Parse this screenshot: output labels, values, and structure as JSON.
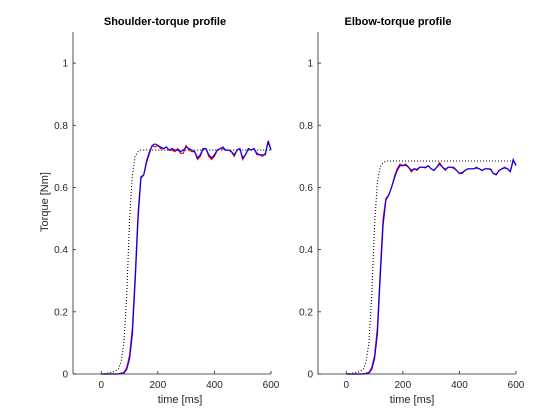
{
  "chart_data": [
    {
      "type": "line",
      "title": "Shoulder-torque profile",
      "xlabel": "time [ms]",
      "ylabel": "Torque [Nm]",
      "xlim": [
        -100,
        600
      ],
      "ylim": [
        0,
        1.1
      ],
      "xticks": [
        0,
        200,
        400,
        600
      ],
      "yticks": [
        0,
        0.2,
        0.4,
        0.6,
        0.8,
        1
      ],
      "grid": false,
      "series": [
        {
          "style": "dotted",
          "color": "#000000",
          "x": [
            0,
            40,
            60,
            70,
            80,
            90,
            100,
            110,
            120,
            130,
            140,
            150,
            200,
            300,
            400,
            500,
            600
          ],
          "y": [
            0,
            0.005,
            0.015,
            0.04,
            0.1,
            0.25,
            0.5,
            0.64,
            0.7,
            0.715,
            0.72,
            0.72,
            0.72,
            0.72,
            0.72,
            0.72,
            0.72
          ]
        },
        {
          "style": "solid",
          "color": "#ff0000",
          "x": [
            0,
            60,
            80,
            90,
            100,
            110,
            120,
            130,
            140,
            150,
            160,
            170,
            180,
            190,
            200,
            210,
            220,
            230,
            240,
            250,
            260,
            270,
            280,
            290,
            300,
            310,
            320,
            330,
            340,
            350,
            360,
            370,
            380,
            390,
            400,
            410,
            420,
            430,
            440,
            450,
            460,
            470,
            480,
            490,
            500,
            510,
            520,
            530,
            540,
            550,
            560,
            570,
            580,
            590,
            600
          ],
          "y": [
            0,
            0,
            0.005,
            0.02,
            0.06,
            0.15,
            0.32,
            0.52,
            0.635,
            0.64,
            0.685,
            0.715,
            0.735,
            0.73,
            0.735,
            0.725,
            0.725,
            0.73,
            0.72,
            0.72,
            0.715,
            0.725,
            0.71,
            0.71,
            0.735,
            0.72,
            0.715,
            0.715,
            0.69,
            0.7,
            0.725,
            0.725,
            0.7,
            0.69,
            0.7,
            0.72,
            0.725,
            0.725,
            0.72,
            0.72,
            0.715,
            0.7,
            0.72,
            0.725,
            0.69,
            0.705,
            0.725,
            0.72,
            0.725,
            0.705,
            0.705,
            0.7,
            0.71,
            0.745,
            0.72
          ]
        },
        {
          "style": "solid",
          "color": "#0000ff",
          "x": [
            0,
            60,
            80,
            90,
            100,
            110,
            120,
            130,
            140,
            150,
            160,
            170,
            180,
            190,
            200,
            210,
            220,
            230,
            240,
            250,
            260,
            270,
            280,
            290,
            300,
            310,
            320,
            330,
            340,
            350,
            360,
            370,
            380,
            390,
            400,
            410,
            420,
            430,
            440,
            450,
            460,
            470,
            480,
            490,
            500,
            510,
            520,
            530,
            540,
            550,
            560,
            570,
            580,
            590,
            600
          ],
          "y": [
            0,
            0,
            0.003,
            0.015,
            0.05,
            0.13,
            0.3,
            0.5,
            0.63,
            0.64,
            0.68,
            0.71,
            0.735,
            0.74,
            0.735,
            0.73,
            0.725,
            0.73,
            0.72,
            0.725,
            0.72,
            0.72,
            0.715,
            0.72,
            0.73,
            0.725,
            0.72,
            0.715,
            0.695,
            0.705,
            0.725,
            0.725,
            0.705,
            0.695,
            0.705,
            0.72,
            0.725,
            0.73,
            0.72,
            0.72,
            0.715,
            0.705,
            0.72,
            0.725,
            0.695,
            0.705,
            0.725,
            0.72,
            0.725,
            0.71,
            0.705,
            0.705,
            0.705,
            0.75,
            0.72
          ]
        }
      ]
    },
    {
      "type": "line",
      "title": "Elbow-torque profile",
      "xlabel": "time [ms]",
      "ylabel": "",
      "xlim": [
        -100,
        600
      ],
      "ylim": [
        0,
        1.1
      ],
      "xticks": [
        0,
        200,
        400,
        600
      ],
      "yticks": [
        0,
        0.2,
        0.4,
        0.6,
        0.8,
        1
      ],
      "grid": false,
      "series": [
        {
          "style": "dotted",
          "color": "#000000",
          "x": [
            0,
            40,
            60,
            70,
            80,
            90,
            100,
            110,
            120,
            130,
            140,
            150,
            200,
            300,
            400,
            500,
            600
          ],
          "y": [
            0,
            0.005,
            0.015,
            0.04,
            0.1,
            0.25,
            0.48,
            0.62,
            0.665,
            0.68,
            0.685,
            0.685,
            0.685,
            0.685,
            0.685,
            0.685,
            0.685
          ]
        },
        {
          "style": "solid",
          "color": "#ff0000",
          "x": [
            0,
            60,
            80,
            90,
            100,
            110,
            120,
            130,
            140,
            150,
            160,
            170,
            180,
            190,
            200,
            210,
            220,
            230,
            240,
            250,
            260,
            270,
            280,
            290,
            300,
            310,
            320,
            330,
            340,
            350,
            360,
            370,
            380,
            390,
            400,
            410,
            420,
            430,
            440,
            450,
            460,
            470,
            480,
            490,
            500,
            510,
            520,
            530,
            540,
            550,
            560,
            570,
            580,
            590,
            600
          ],
          "y": [
            0,
            0,
            0.005,
            0.02,
            0.06,
            0.15,
            0.33,
            0.5,
            0.565,
            0.575,
            0.6,
            0.635,
            0.66,
            0.675,
            0.67,
            0.675,
            0.665,
            0.65,
            0.66,
            0.655,
            0.665,
            0.665,
            0.665,
            0.67,
            0.66,
            0.655,
            0.665,
            0.68,
            0.665,
            0.655,
            0.665,
            0.665,
            0.665,
            0.655,
            0.645,
            0.645,
            0.655,
            0.66,
            0.66,
            0.66,
            0.665,
            0.66,
            0.655,
            0.66,
            0.66,
            0.66,
            0.645,
            0.64,
            0.655,
            0.66,
            0.665,
            0.66,
            0.65,
            0.685,
            0.675
          ]
        },
        {
          "style": "solid",
          "color": "#0000ff",
          "x": [
            0,
            60,
            80,
            90,
            100,
            110,
            120,
            130,
            140,
            150,
            160,
            170,
            180,
            190,
            200,
            210,
            220,
            230,
            240,
            250,
            260,
            270,
            280,
            290,
            300,
            310,
            320,
            330,
            340,
            350,
            360,
            370,
            380,
            390,
            400,
            410,
            420,
            430,
            440,
            450,
            460,
            470,
            480,
            490,
            500,
            510,
            520,
            530,
            540,
            550,
            560,
            570,
            580,
            590,
            600
          ],
          "y": [
            0,
            0,
            0.003,
            0.015,
            0.05,
            0.13,
            0.31,
            0.48,
            0.56,
            0.575,
            0.6,
            0.63,
            0.655,
            0.67,
            0.67,
            0.672,
            0.665,
            0.655,
            0.66,
            0.658,
            0.665,
            0.665,
            0.663,
            0.67,
            0.66,
            0.655,
            0.665,
            0.675,
            0.665,
            0.658,
            0.665,
            0.665,
            0.662,
            0.655,
            0.645,
            0.648,
            0.655,
            0.66,
            0.66,
            0.66,
            0.663,
            0.66,
            0.655,
            0.66,
            0.66,
            0.658,
            0.645,
            0.642,
            0.655,
            0.66,
            0.663,
            0.66,
            0.652,
            0.69,
            0.67
          ]
        }
      ]
    }
  ]
}
